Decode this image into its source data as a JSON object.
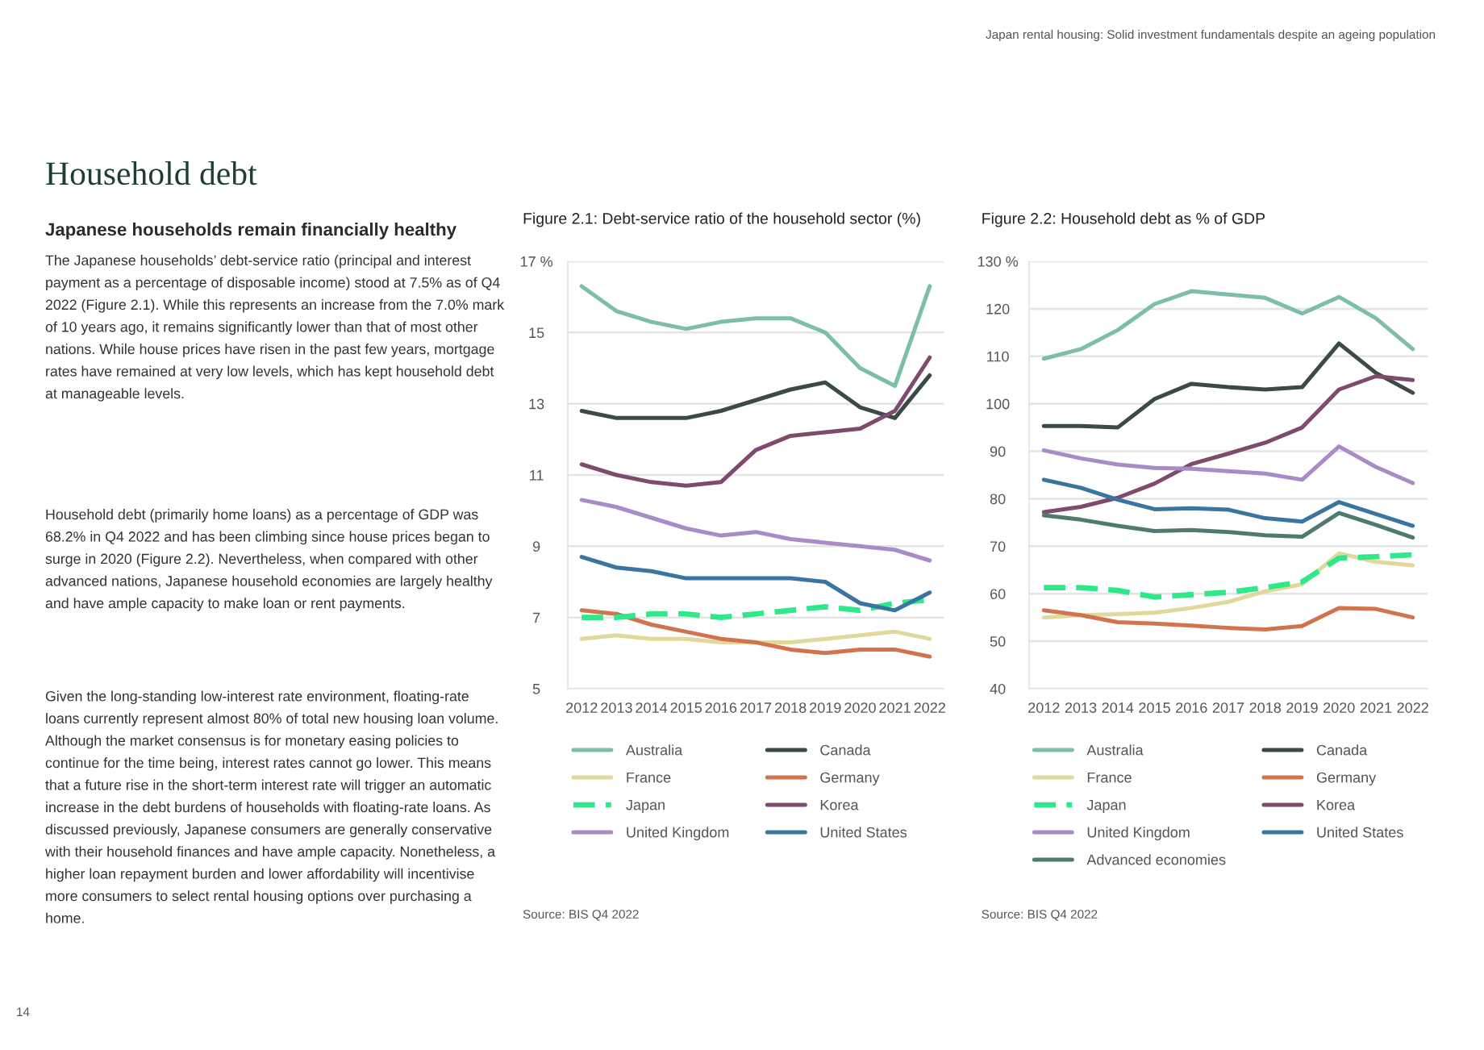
{
  "chart_data": [
    {
      "type": "other",
      "title": "Household debt",
      "subtitle": "Japanese households remain financially healthy",
      "annotations": [
        "Japan rental housing: Solid investment fundamentals despite an ageing population",
        "The Japanese households’ debt-service ratio (principal and interest payment as a percentage of disposable income) stood at 7.5% as of Q4 2022 (Figure 2.1). While this represents an increase from the 7.0% mark of 10 years ago, it remains significantly lower than that of most other nations. While house prices have risen in the past few years, mortgage rates have remained at very low levels, which has kept household debt at manageable levels.",
        "Household debt (primarily home loans) as a percentage of GDP was 68.2% in Q4 2022 and has been climbing since house prices began to surge in 2020 (Figure 2.2). Nevertheless, when compared with other advanced nations, Japanese household economies are largely healthy and have ample capacity to make loan or rent payments.",
        "Given the long-standing low-interest rate environment, floating-rate loans currently represent almost 80% of total new housing loan volume. Although the market consensus is for monetary easing policies to continue for the time being, interest rates cannot go lower. This means that a future rise in the short-term interest rate will trigger an automatic increase in the debt burdens of households with floating-rate loans. As discussed previously, Japanese consumers are generally conservative with their household finances and have ample capacity. Nonetheless, a higher loan repayment burden and lower affordability will incentivise more consumers to select rental housing options over purchasing a home.",
        "14"
      ]
    },
    {
      "type": "line",
      "title": "Figure 2.1: Debt-service ratio of the household sector (%)",
      "categories": [
        "2012",
        "2013",
        "2014",
        "2015",
        "2016",
        "2017",
        "2018",
        "2019",
        "2020",
        "2021",
        "2022"
      ],
      "ylim": [
        5,
        17
      ],
      "yticks": [
        5,
        7,
        9,
        11,
        13,
        15,
        {
          "value": 17,
          "label": "17 %"
        }
      ],
      "grid": "y",
      "legend": "bottom",
      "annotations": [
        "Source: BIS Q4 2022"
      ],
      "series": [
        {
          "name": "Australia",
          "color": "#7dbfa4",
          "values": [
            16.3,
            15.6,
            15.3,
            15.1,
            15.3,
            15.4,
            15.4,
            15.0,
            14.0,
            13.5,
            16.3
          ]
        },
        {
          "name": "Canada",
          "color": "#3b4a48",
          "values": [
            12.8,
            12.6,
            12.6,
            12.6,
            12.8,
            13.1,
            13.4,
            13.6,
            12.9,
            12.6,
            13.8
          ]
        },
        {
          "name": "France",
          "color": "#e3d89b",
          "values": [
            6.4,
            6.5,
            6.4,
            6.4,
            6.3,
            6.3,
            6.3,
            6.4,
            6.5,
            6.6,
            6.4
          ]
        },
        {
          "name": "Germany",
          "color": "#d2734f",
          "values": [
            7.2,
            7.1,
            6.8,
            6.6,
            6.4,
            6.3,
            6.1,
            6.0,
            6.1,
            6.1,
            5.9
          ]
        },
        {
          "name": "Japan",
          "color": "#2ee88a",
          "line_style": "dashed",
          "values": [
            7.0,
            7.0,
            7.1,
            7.1,
            7.0,
            7.1,
            7.2,
            7.3,
            7.2,
            7.4,
            7.5
          ]
        },
        {
          "name": "Korea",
          "color": "#7e4a6e",
          "values": [
            11.3,
            11.0,
            10.8,
            10.7,
            10.8,
            11.7,
            12.1,
            12.2,
            12.3,
            12.8,
            14.3
          ]
        },
        {
          "name": "United Kingdom",
          "color": "#a98cc7",
          "values": [
            10.3,
            10.1,
            9.8,
            9.5,
            9.3,
            9.4,
            9.2,
            9.1,
            9.0,
            8.9,
            8.6
          ]
        },
        {
          "name": "United States",
          "color": "#3a74a0",
          "values": [
            8.7,
            8.4,
            8.3,
            8.1,
            8.1,
            8.1,
            8.1,
            8.0,
            7.4,
            7.2,
            7.7
          ]
        }
      ]
    },
    {
      "type": "line",
      "title": "Figure 2.2: Household debt as % of GDP",
      "categories": [
        "2012",
        "2013",
        "2014",
        "2015",
        "2016",
        "2017",
        "2018",
        "2019",
        "2020",
        "2021",
        "2022"
      ],
      "ylim": [
        40,
        130
      ],
      "yticks": [
        40,
        50,
        60,
        70,
        80,
        90,
        100,
        110,
        120,
        {
          "value": 130,
          "label": "130 %"
        }
      ],
      "grid": "y",
      "legend": "bottom",
      "annotations": [
        "Source: BIS Q4 2022"
      ],
      "series": [
        {
          "name": "Australia",
          "color": "#7dbfa4",
          "values": [
            109.5,
            111.5,
            115.5,
            121,
            123.7,
            123,
            122.3,
            119,
            122.5,
            118,
            111.5
          ]
        },
        {
          "name": "Canada",
          "color": "#3b4a48",
          "values": [
            95.3,
            95.3,
            95,
            101,
            104.2,
            103.5,
            103,
            103.5,
            112.7,
            106.5,
            102.3
          ]
        },
        {
          "name": "France",
          "color": "#e3d89b",
          "values": [
            55,
            55.5,
            55.7,
            56,
            57,
            58.3,
            60.5,
            62,
            68.5,
            66.7,
            66
          ]
        },
        {
          "name": "Germany",
          "color": "#d2734f",
          "values": [
            56.5,
            55.5,
            54,
            53.7,
            53.3,
            52.8,
            52.5,
            53.2,
            57,
            56.8,
            55
          ]
        },
        {
          "name": "Japan",
          "color": "#2ee88a",
          "line_style": "dashed",
          "values": [
            61.3,
            61.3,
            60.7,
            59.3,
            59.8,
            60.3,
            61.3,
            62.5,
            67.5,
            67.8,
            68.2
          ]
        },
        {
          "name": "Korea",
          "color": "#7e4a6e",
          "values": [
            77.2,
            78.3,
            80.2,
            83.2,
            87.3,
            89.5,
            91.8,
            95,
            103,
            105.8,
            105
          ]
        },
        {
          "name": "United Kingdom",
          "color": "#a98cc7",
          "values": [
            90.2,
            88.5,
            87.2,
            86.5,
            86.3,
            85.8,
            85.3,
            84,
            91,
            86.7,
            83.3
          ]
        },
        {
          "name": "United States",
          "color": "#3a74a0",
          "values": [
            84,
            82.3,
            79.8,
            77.8,
            78,
            77.7,
            75.9,
            75.2,
            79.3,
            76.8,
            74.3
          ]
        },
        {
          "name": "Advanced economies",
          "color": "#4e7a72",
          "values": [
            76.5,
            75.6,
            74.3,
            73.2,
            73.4,
            73,
            72.3,
            72,
            77,
            74.5,
            71.8
          ]
        }
      ]
    }
  ]
}
